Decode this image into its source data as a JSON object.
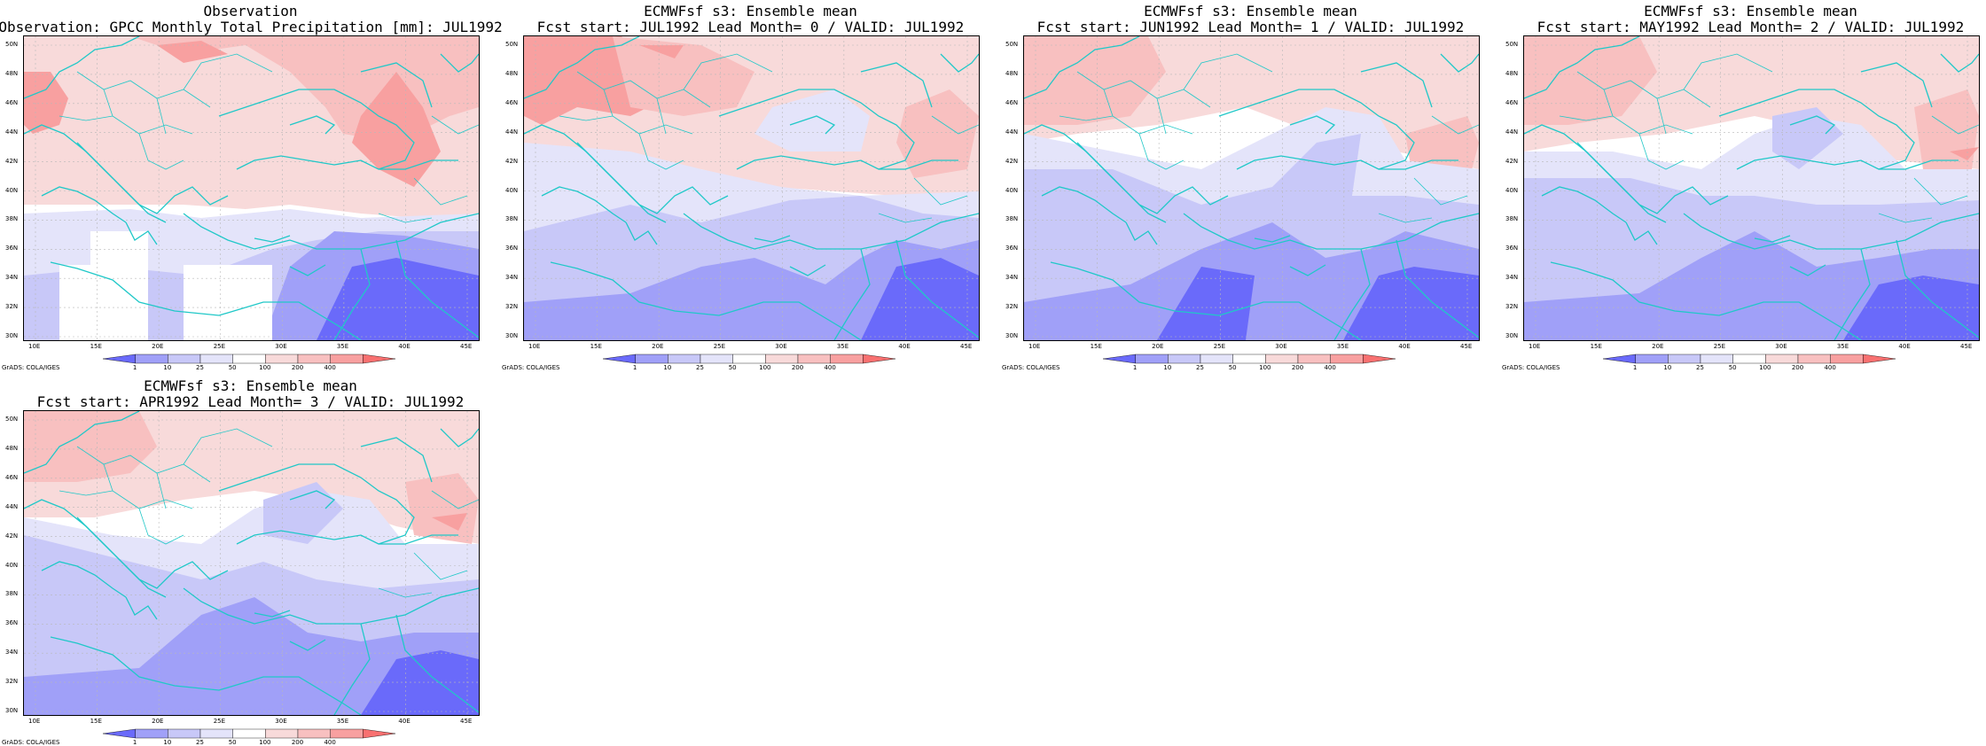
{
  "panels": [
    {
      "title_line1": "Observation",
      "title_line2": "Observation: GPCC Monthly Total Precipitation [mm]: JUL1992",
      "variant": "obs"
    },
    {
      "title_line1": "ECMWFsf s3: Ensemble mean",
      "title_line2": "Fcst start: JUL1992  Lead Month= 0 / VALID: JUL1992",
      "variant": "lead0"
    },
    {
      "title_line1": "ECMWFsf s3: Ensemble mean",
      "title_line2": "Fcst start: JUN1992  Lead Month= 1 / VALID: JUL1992",
      "variant": "lead1"
    },
    {
      "title_line1": "ECMWFsf s3: Ensemble mean",
      "title_line2": "Fcst start: MAY1992  Lead Month= 2 / VALID: JUL1992",
      "variant": "lead2"
    },
    {
      "title_line1": "ECMWFsf s3: Ensemble mean",
      "title_line2": "Fcst start: APR1992  Lead Month= 3 / VALID: JUL1992",
      "variant": "lead3"
    }
  ],
  "map": {
    "lat_labels": [
      "50N",
      "48N",
      "46N",
      "44N",
      "42N",
      "40N",
      "38N",
      "36N",
      "34N",
      "32N",
      "30N"
    ],
    "lon_labels": [
      "10E",
      "15E",
      "20E",
      "25E",
      "30E",
      "35E",
      "40E",
      "45E"
    ],
    "credit": "GrADS: COLA/IGES"
  },
  "colorbar": {
    "labels": [
      "1",
      "10",
      "25",
      "50",
      "100",
      "200",
      "400"
    ],
    "colors": [
      "#6a6afa",
      "#a0a0f8",
      "#c8c8f8",
      "#e4e4fa",
      "#ffffff",
      "#f8dada",
      "#f8c0c0",
      "#f8a0a0",
      "#f87070"
    ]
  },
  "palette": {
    "coast": "#20c8c8",
    "grid": "#b8b8b8"
  }
}
